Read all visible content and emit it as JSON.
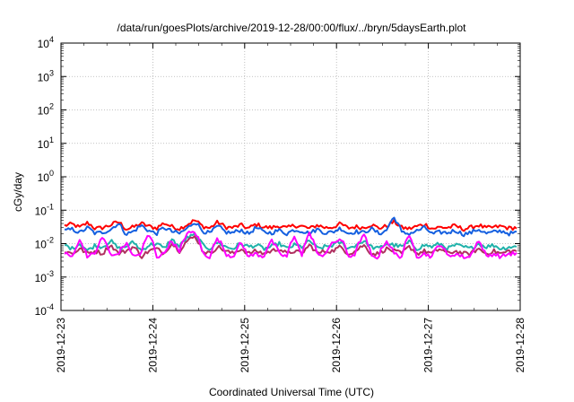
{
  "chart_data": {
    "type": "line",
    "title": "/data/run/goesPlots/archive/2019-12-28/00:00/flux/../bryn/5daysEarth.plot",
    "xlabel": "Coordinated Universal Time (UTC)",
    "ylabel": "cGy/day",
    "x_ticks": [
      "2019-12-23",
      "2019-12-24",
      "2019-12-25",
      "2019-12-26",
      "2019-12-27",
      "2019-12-28"
    ],
    "y_scale": "log",
    "y_ticks": [
      {
        "base": "10",
        "exp": "-4"
      },
      {
        "base": "10",
        "exp": "-3"
      },
      {
        "base": "10",
        "exp": "-2"
      },
      {
        "base": "10",
        "exp": "-1"
      },
      {
        "base": "10",
        "exp": "0"
      },
      {
        "base": "10",
        "exp": "1"
      },
      {
        "base": "10",
        "exp": "2"
      },
      {
        "base": "10",
        "exp": "3"
      },
      {
        "base": "10",
        "exp": "4"
      }
    ],
    "xlim": [
      "2019-12-23",
      "2019-12-28"
    ],
    "ylim": [
      0.0001,
      10000
    ],
    "grid": true,
    "series": [
      {
        "color": "#ff0000",
        "level": 0.03,
        "values": [
          0.035,
          0.038,
          0.03,
          0.042,
          0.028,
          0.03,
          0.036,
          0.045,
          0.027,
          0.031,
          0.04,
          0.033,
          0.029,
          0.041,
          0.032,
          0.028,
          0.037,
          0.05,
          0.033,
          0.029,
          0.044,
          0.031,
          0.03,
          0.036,
          0.028,
          0.038,
          0.031,
          0.03,
          0.034,
          0.029,
          0.035,
          0.033,
          0.028,
          0.036,
          0.03,
          0.031,
          0.039,
          0.029,
          0.032,
          0.03,
          0.037,
          0.029,
          0.033,
          0.045,
          0.03,
          0.028,
          0.033,
          0.038,
          0.028,
          0.031,
          0.03,
          0.034,
          0.027,
          0.03,
          0.036,
          0.029,
          0.031,
          0.033,
          0.029,
          0.03
        ]
      },
      {
        "color": "#1560e0",
        "level": 0.022,
        "values": [
          0.024,
          0.027,
          0.021,
          0.03,
          0.02,
          0.022,
          0.026,
          0.04,
          0.019,
          0.023,
          0.035,
          0.024,
          0.02,
          0.03,
          0.023,
          0.02,
          0.028,
          0.045,
          0.024,
          0.02,
          0.033,
          0.022,
          0.021,
          0.026,
          0.019,
          0.03,
          0.022,
          0.021,
          0.025,
          0.02,
          0.026,
          0.024,
          0.02,
          0.027,
          0.021,
          0.022,
          0.029,
          0.02,
          0.023,
          0.021,
          0.028,
          0.02,
          0.024,
          0.06,
          0.021,
          0.02,
          0.024,
          0.03,
          0.019,
          0.022,
          0.021,
          0.025,
          0.019,
          0.021,
          0.027,
          0.02,
          0.022,
          0.024,
          0.02,
          0.021
        ]
      },
      {
        "color": "#20b2aa",
        "level": 0.008,
        "values": [
          0.009,
          0.007,
          0.01,
          0.006,
          0.009,
          0.008,
          0.012,
          0.007,
          0.008,
          0.011,
          0.006,
          0.009,
          0.01,
          0.007,
          0.013,
          0.008,
          0.015,
          0.018,
          0.009,
          0.007,
          0.011,
          0.008,
          0.007,
          0.01,
          0.008,
          0.009,
          0.007,
          0.008,
          0.01,
          0.007,
          0.009,
          0.008,
          0.012,
          0.007,
          0.008,
          0.009,
          0.011,
          0.007,
          0.009,
          0.012,
          0.008,
          0.007,
          0.01,
          0.009,
          0.008,
          0.011,
          0.007,
          0.009,
          0.008,
          0.01,
          0.007,
          0.009,
          0.008,
          0.007,
          0.01,
          0.008,
          0.009,
          0.007,
          0.008,
          0.008
        ]
      },
      {
        "color": "#b03060",
        "level": 0.005,
        "values": [
          0.006,
          0.005,
          0.007,
          0.005,
          0.006,
          0.005,
          0.009,
          0.005,
          0.006,
          0.008,
          0.004,
          0.006,
          0.007,
          0.005,
          0.01,
          0.006,
          0.012,
          0.016,
          0.006,
          0.005,
          0.008,
          0.006,
          0.005,
          0.007,
          0.005,
          0.006,
          0.005,
          0.006,
          0.007,
          0.005,
          0.006,
          0.005,
          0.009,
          0.005,
          0.006,
          0.006,
          0.008,
          0.005,
          0.006,
          0.009,
          0.005,
          0.005,
          0.007,
          0.006,
          0.005,
          0.008,
          0.005,
          0.006,
          0.005,
          0.007,
          0.005,
          0.006,
          0.005,
          0.005,
          0.007,
          0.005,
          0.006,
          0.005,
          0.006,
          0.006
        ]
      },
      {
        "color": "#ff00ff",
        "level": 0.0045,
        "values": [
          0.005,
          0.004,
          0.012,
          0.004,
          0.005,
          0.015,
          0.004,
          0.005,
          0.01,
          0.004,
          0.005,
          0.018,
          0.004,
          0.005,
          0.012,
          0.005,
          0.02,
          0.022,
          0.005,
          0.004,
          0.014,
          0.005,
          0.004,
          0.01,
          0.004,
          0.005,
          0.004,
          0.012,
          0.005,
          0.004,
          0.015,
          0.004,
          0.02,
          0.004,
          0.005,
          0.01,
          0.014,
          0.004,
          0.005,
          0.018,
          0.004,
          0.004,
          0.012,
          0.005,
          0.004,
          0.016,
          0.004,
          0.005,
          0.004,
          0.01,
          0.004,
          0.005,
          0.004,
          0.004,
          0.012,
          0.004,
          0.005,
          0.004,
          0.005,
          0.005
        ]
      }
    ]
  }
}
